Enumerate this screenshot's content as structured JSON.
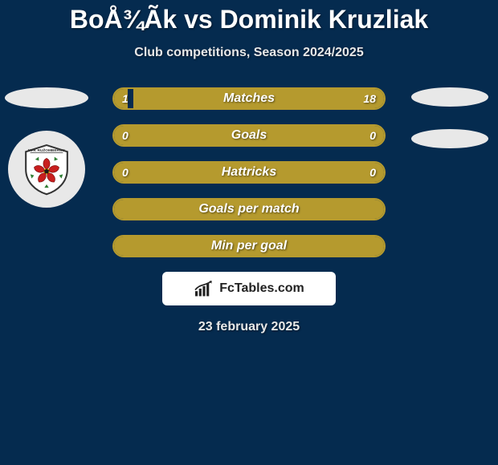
{
  "title": "BoÅ¾Ãk vs Dominik Kruzliak",
  "subtitle": "Club competitions, Season 2024/2025",
  "date": "23 february 2025",
  "brand": {
    "text": "FcTables.com",
    "icon_color": "#222222",
    "background": "#ffffff"
  },
  "colors": {
    "page_bg": "#052b4f",
    "bar_border": "#b59a2e",
    "bar_fill": "#b59a2e",
    "text": "#ffffff",
    "ellipse": "#e8e8e8"
  },
  "bars": [
    {
      "label": "Matches",
      "left": "1",
      "right": "18",
      "left_fill_pct": 5,
      "right_fill_pct": 93,
      "full": false
    },
    {
      "label": "Goals",
      "left": "0",
      "right": "0",
      "left_fill_pct": 0,
      "right_fill_pct": 0,
      "full": true
    },
    {
      "label": "Hattricks",
      "left": "0",
      "right": "0",
      "left_fill_pct": 0,
      "right_fill_pct": 0,
      "full": true
    },
    {
      "label": "Goals per match",
      "left": "",
      "right": "",
      "left_fill_pct": 0,
      "right_fill_pct": 0,
      "full": true
    },
    {
      "label": "Min per goal",
      "left": "",
      "right": "",
      "left_fill_pct": 0,
      "right_fill_pct": 0,
      "full": true
    }
  ],
  "crest": {
    "shield_fill": "#ffffff",
    "shield_stroke": "#333333",
    "rose_fill": "#c81e1e",
    "center_fill": "#1a1a1a",
    "ribbon_text_top": "MFK RUŽOMBEROK"
  }
}
